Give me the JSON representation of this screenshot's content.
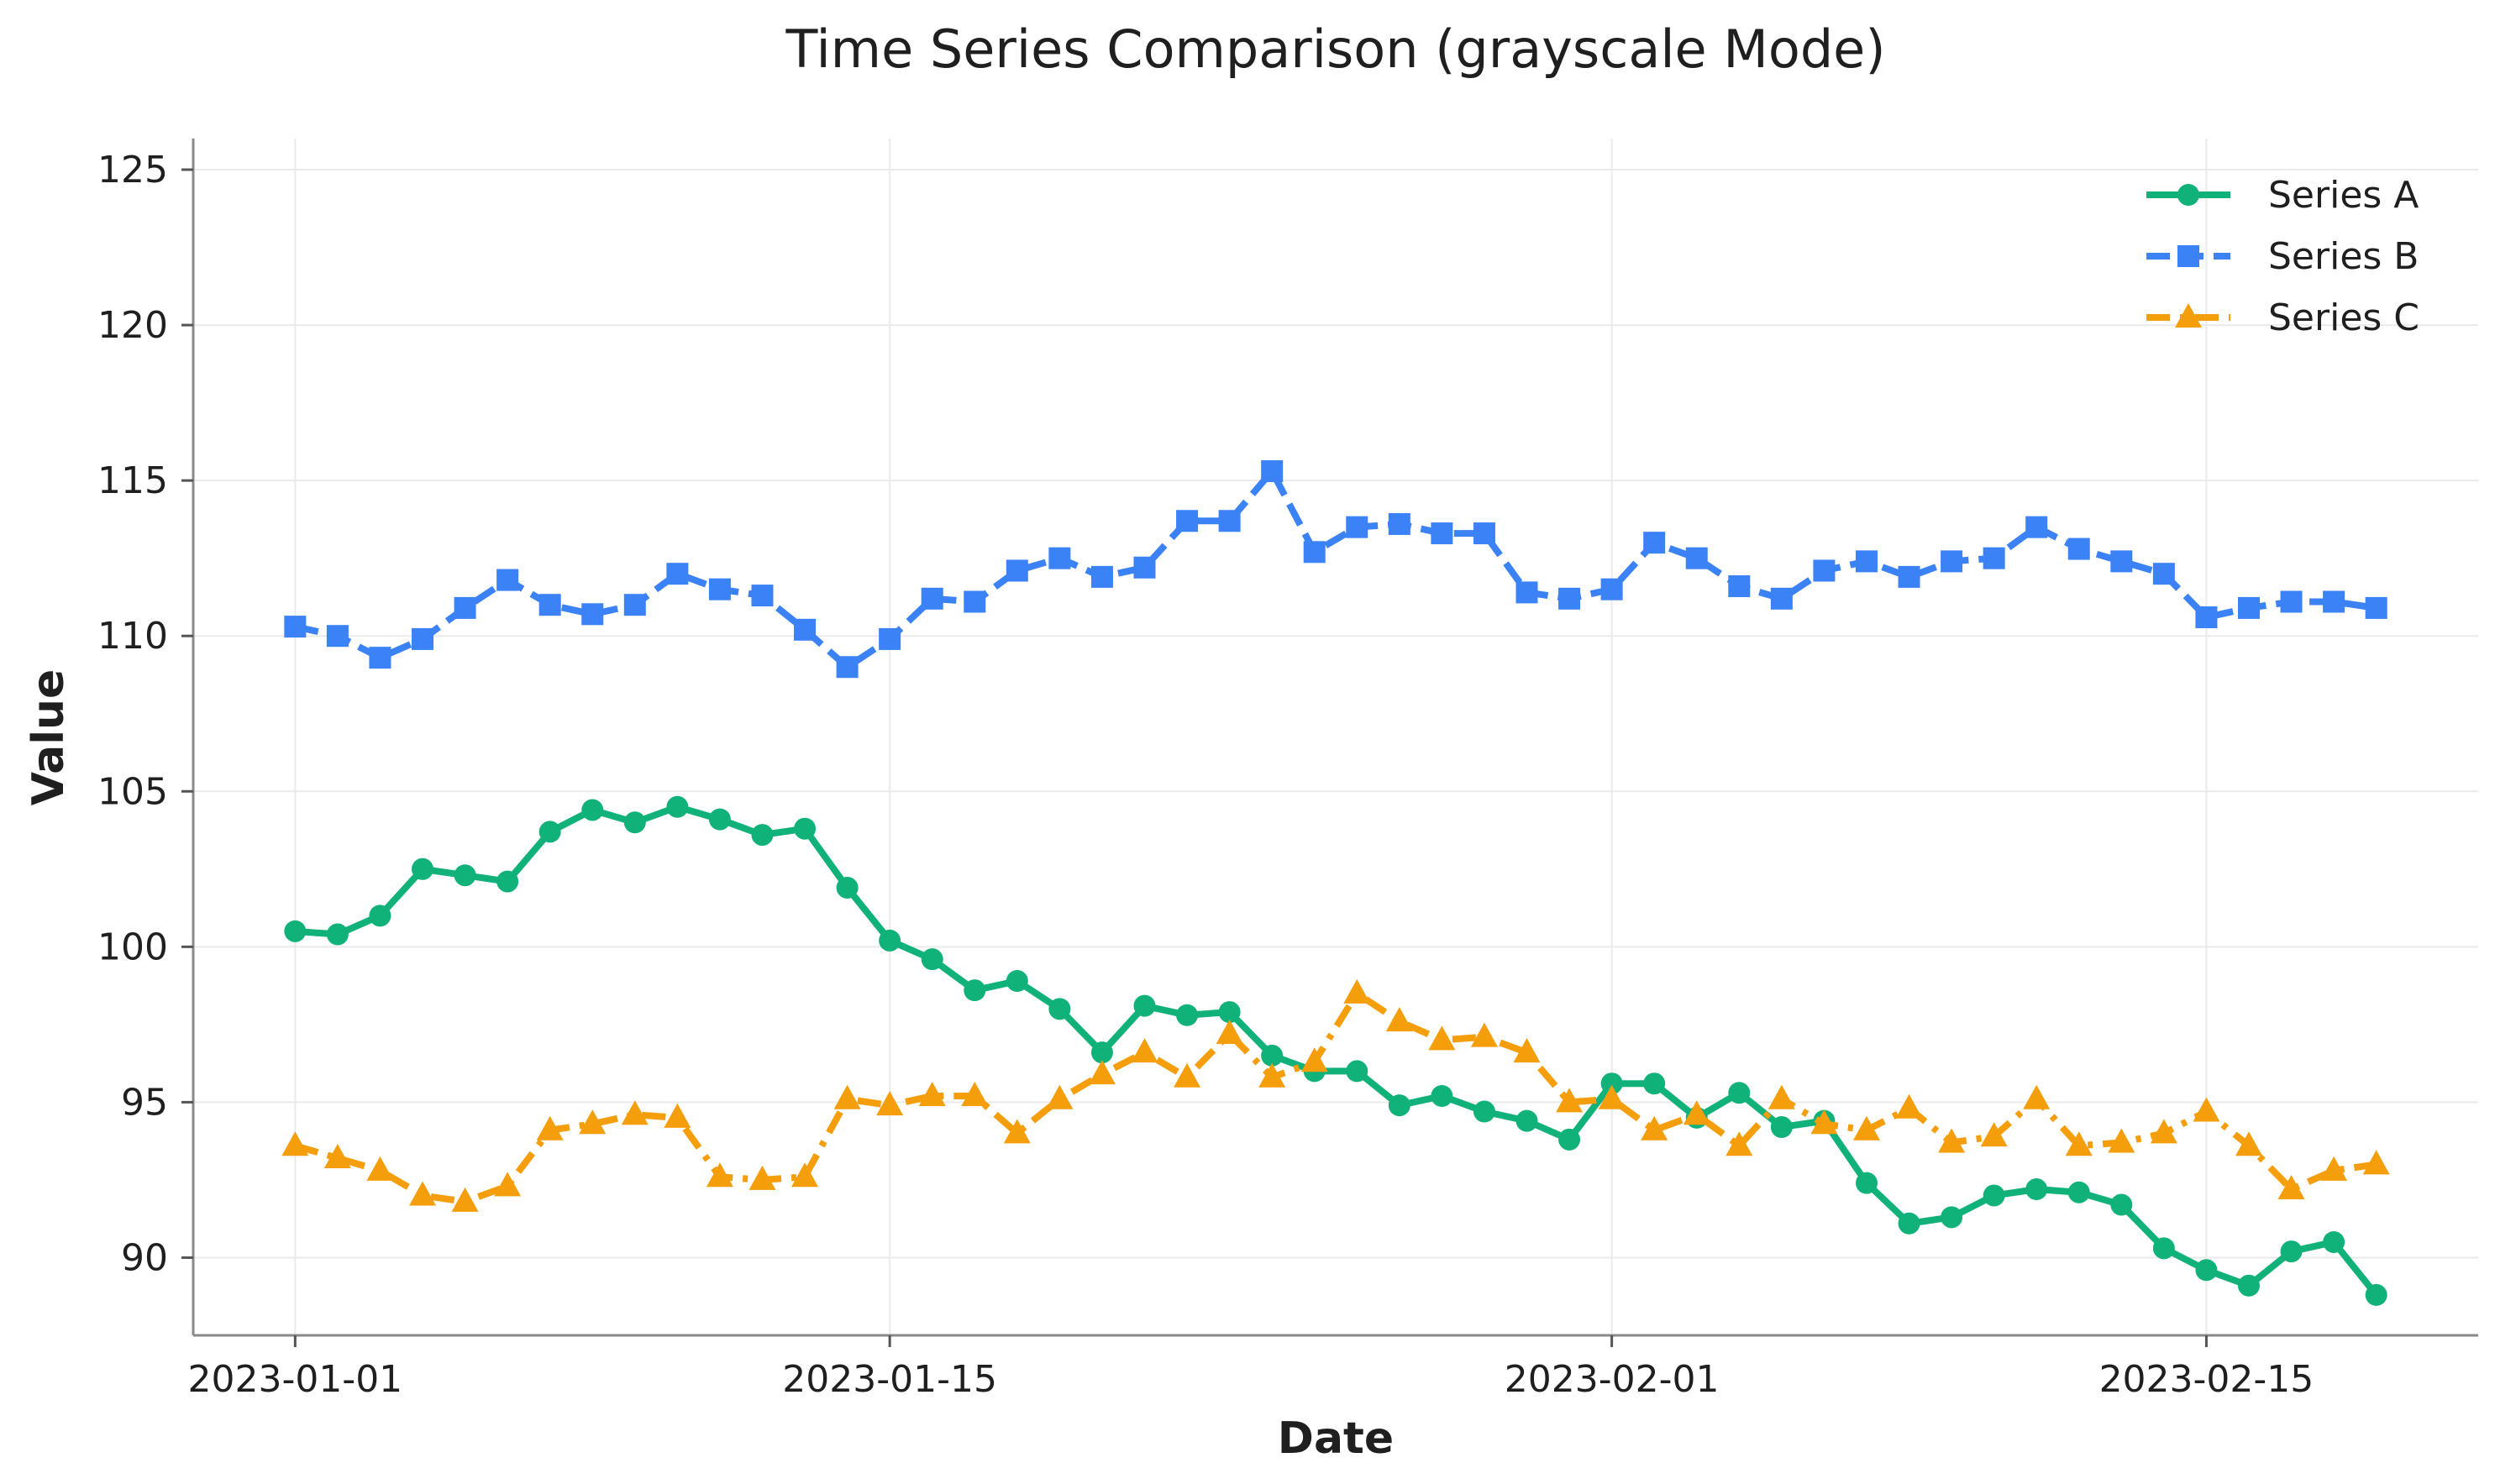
{
  "chart_data": {
    "type": "line",
    "title": "Time Series Comparison (grayscale Mode)",
    "xlabel": "Date",
    "ylabel": "Value",
    "x_start": "2023-01-01",
    "x": [
      "2023-01-01",
      "2023-01-02",
      "2023-01-03",
      "2023-01-04",
      "2023-01-05",
      "2023-01-06",
      "2023-01-07",
      "2023-01-08",
      "2023-01-09",
      "2023-01-10",
      "2023-01-11",
      "2023-01-12",
      "2023-01-13",
      "2023-01-14",
      "2023-01-15",
      "2023-01-16",
      "2023-01-17",
      "2023-01-18",
      "2023-01-19",
      "2023-01-20",
      "2023-01-21",
      "2023-01-22",
      "2023-01-23",
      "2023-01-24",
      "2023-01-25",
      "2023-01-26",
      "2023-01-27",
      "2023-01-28",
      "2023-01-29",
      "2023-01-30",
      "2023-01-31",
      "2023-02-01",
      "2023-02-02",
      "2023-02-03",
      "2023-02-04",
      "2023-02-05",
      "2023-02-06",
      "2023-02-07",
      "2023-02-08",
      "2023-02-09",
      "2023-02-10",
      "2023-02-11",
      "2023-02-12",
      "2023-02-13",
      "2023-02-14",
      "2023-02-15",
      "2023-02-16",
      "2023-02-17",
      "2023-02-18",
      "2023-02-19"
    ],
    "xticks": [
      "2023-01-01",
      "2023-01-15",
      "2023-02-01",
      "2023-02-15"
    ],
    "yticks": [
      90,
      95,
      100,
      105,
      110,
      115,
      120,
      125
    ],
    "ylim": [
      87.5,
      126.0
    ],
    "xlim_days": [
      -2.4,
      51.4
    ],
    "grid": true,
    "legend_position": "top-right",
    "series": [
      {
        "name": "Series A",
        "color": "#10b27a",
        "marker": "circle",
        "line_style": "solid",
        "values": [
          100.5,
          100.4,
          101.0,
          102.5,
          102.3,
          102.1,
          103.7,
          104.4,
          104.0,
          104.5,
          104.1,
          103.6,
          103.8,
          101.9,
          100.2,
          99.6,
          98.6,
          98.9,
          98.0,
          96.6,
          98.1,
          97.8,
          97.9,
          96.5,
          96.0,
          96.0,
          94.9,
          95.2,
          94.7,
          94.4,
          93.8,
          95.6,
          95.6,
          94.5,
          95.3,
          94.2,
          94.4,
          92.4,
          91.1,
          91.3,
          92.0,
          92.2,
          92.1,
          91.7,
          90.3,
          89.6,
          89.1,
          90.2,
          90.5,
          88.8
        ]
      },
      {
        "name": "Series B",
        "color": "#3b82f6",
        "marker": "square",
        "line_style": "dashed",
        "values": [
          110.3,
          110.0,
          109.3,
          109.9,
          110.9,
          111.8,
          111.0,
          110.7,
          111.0,
          112.0,
          111.5,
          111.3,
          110.2,
          109.0,
          109.9,
          111.2,
          111.1,
          112.1,
          112.5,
          111.9,
          112.2,
          113.7,
          113.7,
          115.3,
          112.7,
          113.5,
          113.6,
          113.3,
          113.3,
          111.4,
          111.2,
          111.5,
          113.0,
          112.5,
          111.6,
          111.2,
          112.1,
          112.4,
          111.9,
          112.4,
          112.5,
          113.5,
          112.8,
          112.4,
          112.0,
          110.6,
          110.9,
          111.1,
          111.1,
          110.9
        ]
      },
      {
        "name": "Series C",
        "color": "#f59e0b",
        "marker": "triangle",
        "line_style": "dashdot",
        "values": [
          93.6,
          93.2,
          92.8,
          92.0,
          91.8,
          92.3,
          94.1,
          94.3,
          94.6,
          94.5,
          92.6,
          92.5,
          92.6,
          95.1,
          94.9,
          95.2,
          95.2,
          94.0,
          95.1,
          95.9,
          96.6,
          95.8,
          97.2,
          95.8,
          96.3,
          98.5,
          97.6,
          97.0,
          97.1,
          96.6,
          95.0,
          95.1,
          94.1,
          94.6,
          93.6,
          95.1,
          94.3,
          94.1,
          94.8,
          93.7,
          93.9,
          95.1,
          93.6,
          93.7,
          94.0,
          94.7,
          93.6,
          92.2,
          92.8,
          93.0
        ]
      }
    ]
  }
}
